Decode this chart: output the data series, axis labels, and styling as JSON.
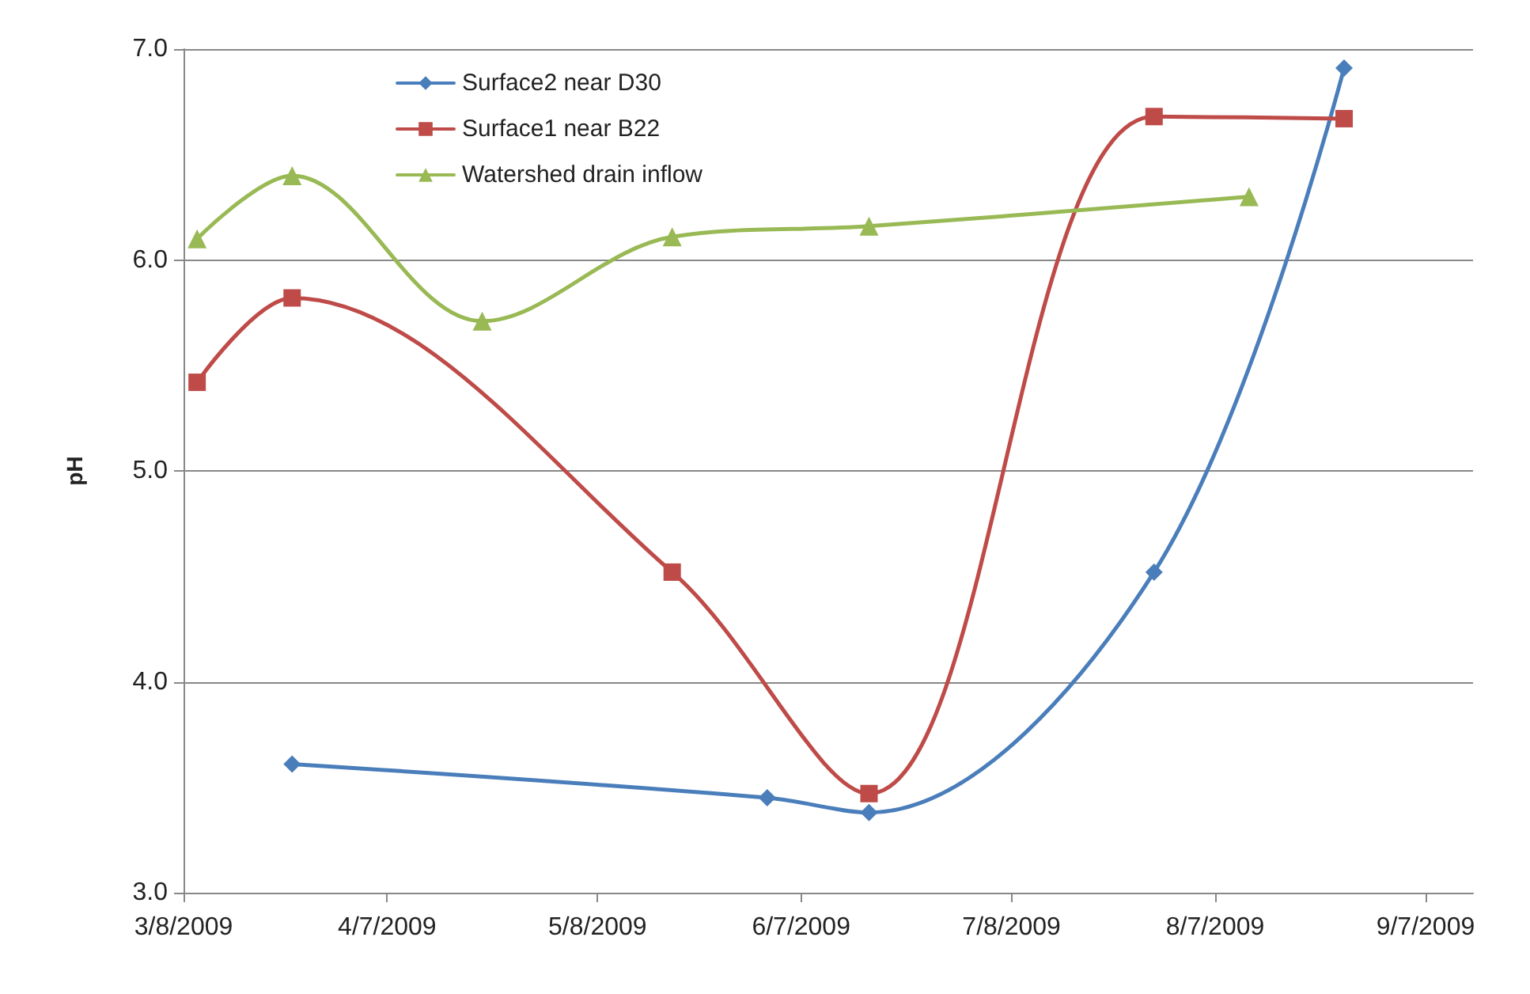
{
  "chart_data": {
    "type": "line",
    "ylabel": "pH",
    "xlim": [
      "2009-03-08",
      "2009-09-14"
    ],
    "xticks": [
      {
        "value": "2009-03-08",
        "label": "3/8/2009"
      },
      {
        "value": "2009-04-07",
        "label": "4/7/2009"
      },
      {
        "value": "2009-05-08",
        "label": "5/8/2009"
      },
      {
        "value": "2009-06-07",
        "label": "6/7/2009"
      },
      {
        "value": "2009-07-08",
        "label": "7/8/2009"
      },
      {
        "value": "2009-08-07",
        "label": "8/7/2009"
      },
      {
        "value": "2009-09-07",
        "label": "9/7/2009"
      }
    ],
    "ylim": [
      3,
      7
    ],
    "yticks": [
      {
        "value": 3,
        "label": "3.0"
      },
      {
        "value": 4,
        "label": "4.0"
      },
      {
        "value": 5,
        "label": "5.0"
      },
      {
        "value": 6,
        "label": "6.0"
      },
      {
        "value": 7,
        "label": "7.0"
      }
    ],
    "grid": "y",
    "legend": "top",
    "series": [
      {
        "name": "Surface2 near D30",
        "color": "#4a7ebb",
        "marker": "diamond",
        "x": [
          "2009-03-24",
          "2009-06-02",
          "2009-06-17",
          "2009-07-29",
          "2009-08-26"
        ],
        "values": [
          3.61,
          3.45,
          3.38,
          4.52,
          6.91
        ]
      },
      {
        "name": "Surface1 near B22",
        "color": "#be4b48",
        "marker": "square",
        "x": [
          "2009-03-10",
          "2009-03-24",
          "2009-05-19",
          "2009-06-17",
          "2009-07-29",
          "2009-08-26"
        ],
        "values": [
          5.42,
          5.82,
          4.52,
          3.47,
          6.68,
          6.67
        ]
      },
      {
        "name": "Watershed drain inflow",
        "color": "#98b954",
        "marker": "triangle",
        "x": [
          "2009-03-10",
          "2009-03-24",
          "2009-04-21",
          "2009-05-19",
          "2009-06-17",
          "2009-08-12"
        ],
        "values": [
          6.1,
          6.4,
          5.71,
          6.11,
          6.16,
          6.3
        ]
      }
    ]
  }
}
